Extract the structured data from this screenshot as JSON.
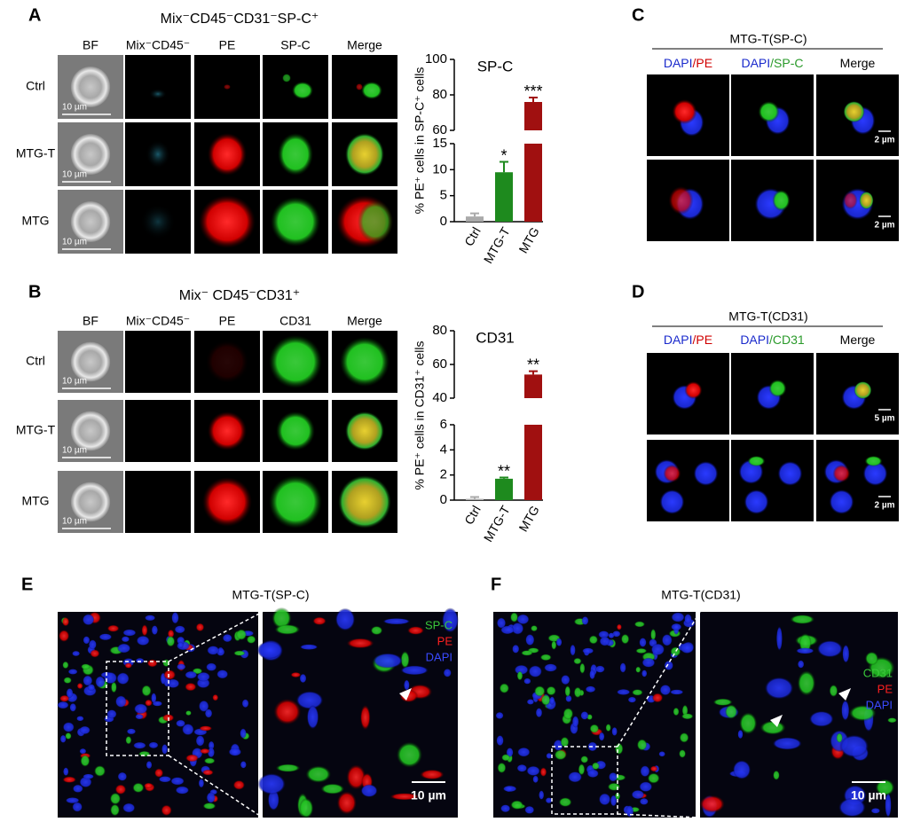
{
  "panels": {
    "A": {
      "label": "A",
      "title": "Mix⁻CD45⁻CD31⁻SP-C⁺",
      "columns": [
        "BF",
        "Mix⁻CD45⁻",
        "PE",
        "SP-C",
        "Merge"
      ],
      "rows": [
        "Ctrl",
        "MTG-T",
        "MTG"
      ],
      "scale": "10 µm"
    },
    "B": {
      "label": "B",
      "title": "Mix⁻ CD45⁻CD31⁺",
      "columns": [
        "BF",
        "Mix⁻CD45⁻",
        "PE",
        "CD31",
        "Merge"
      ],
      "rows": [
        "Ctrl",
        "MTG-T",
        "MTG"
      ],
      "scale": "10 µm"
    },
    "C": {
      "label": "C",
      "title": "MTG-T(SP-C)",
      "columns": [
        [
          "DAPI",
          "/PE"
        ],
        [
          "DAPI",
          "/SP-C"
        ],
        [
          "Merge"
        ]
      ],
      "scales": [
        "2 µm",
        "2 µm"
      ]
    },
    "D": {
      "label": "D",
      "title": "MTG-T(CD31)",
      "columns": [
        [
          "DAPI",
          "/PE"
        ],
        [
          "DAPI",
          "/CD31"
        ],
        [
          "Merge"
        ]
      ],
      "scales": [
        "5 µm",
        "2 µm"
      ]
    },
    "E": {
      "label": "E",
      "title": "MTG-T(SP-C)",
      "legend": [
        "SP-C",
        "PE",
        "DAPI"
      ],
      "scale": "10 µm"
    },
    "F": {
      "label": "F",
      "title": "MTG-T(CD31)",
      "legend": [
        "CD31",
        "PE",
        "DAPI"
      ],
      "scale": "10 µm"
    }
  },
  "chart_data": [
    {
      "type": "bar",
      "title": "SP-C",
      "y_label": "% PE⁺ cells in SP-C⁺ cells",
      "categories": [
        "Ctrl",
        "MTG-T",
        "MTG"
      ],
      "values": [
        1,
        9.5,
        76
      ],
      "errors": [
        0.6,
        2,
        2.5
      ],
      "annotations": [
        null,
        "*",
        "***"
      ],
      "colors": [
        "#aaaaaa",
        "#1e8a1e",
        "#a01010"
      ],
      "ylim": [
        0,
        100
      ],
      "ybreak": [
        15,
        60
      ],
      "yticks": [
        0,
        5,
        10,
        15,
        60,
        80,
        100
      ]
    },
    {
      "type": "bar",
      "title": "CD31",
      "y_label": "% PE⁺ cells in CD31⁺ cells",
      "categories": [
        "Ctrl",
        "MTG-T",
        "MTG"
      ],
      "values": [
        0.1,
        1.7,
        54
      ],
      "errors": [
        0.15,
        0.1,
        2
      ],
      "annotations": [
        null,
        "**",
        "**"
      ],
      "colors": [
        "#aaaaaa",
        "#1e8a1e",
        "#a01010"
      ],
      "ylim": [
        0,
        80
      ],
      "ybreak": [
        6,
        40
      ],
      "yticks": [
        0,
        2,
        4,
        6,
        40,
        60,
        80
      ]
    }
  ]
}
